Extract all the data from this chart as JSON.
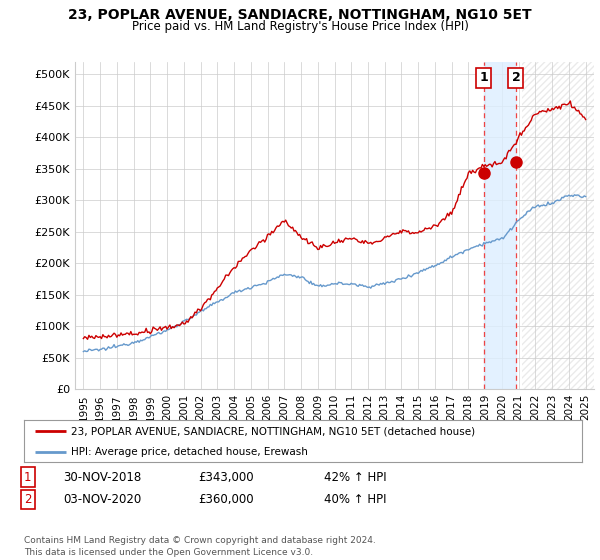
{
  "title": "23, POPLAR AVENUE, SANDIACRE, NOTTINGHAM, NG10 5ET",
  "subtitle": "Price paid vs. HM Land Registry's House Price Index (HPI)",
  "ylim": [
    0,
    520000
  ],
  "yticks": [
    0,
    50000,
    100000,
    150000,
    200000,
    250000,
    300000,
    350000,
    400000,
    450000,
    500000
  ],
  "ytick_labels": [
    "£0",
    "£50K",
    "£100K",
    "£150K",
    "£200K",
    "£250K",
    "£300K",
    "£350K",
    "£400K",
    "£450K",
    "£500K"
  ],
  "line1_color": "#cc0000",
  "line2_color": "#6699cc",
  "point1_year": 2018.92,
  "point1_value": 343000,
  "point2_year": 2020.84,
  "point2_value": 360000,
  "legend_label1": "23, POPLAR AVENUE, SANDIACRE, NOTTINGHAM, NG10 5ET (detached house)",
  "legend_label2": "HPI: Average price, detached house, Erewash",
  "table_row1_num": "1",
  "table_row1_date": "30-NOV-2018",
  "table_row1_price": "£343,000",
  "table_row1_hpi": "42% ↑ HPI",
  "table_row2_num": "2",
  "table_row2_date": "03-NOV-2020",
  "table_row2_price": "£360,000",
  "table_row2_hpi": "40% ↑ HPI",
  "footer": "Contains HM Land Registry data © Crown copyright and database right 2024.\nThis data is licensed under the Open Government Licence v3.0.",
  "bg_color": "#ffffff",
  "grid_color": "#cccccc",
  "shade_color": "#ddeeff",
  "hatch_color": "#cccccc"
}
